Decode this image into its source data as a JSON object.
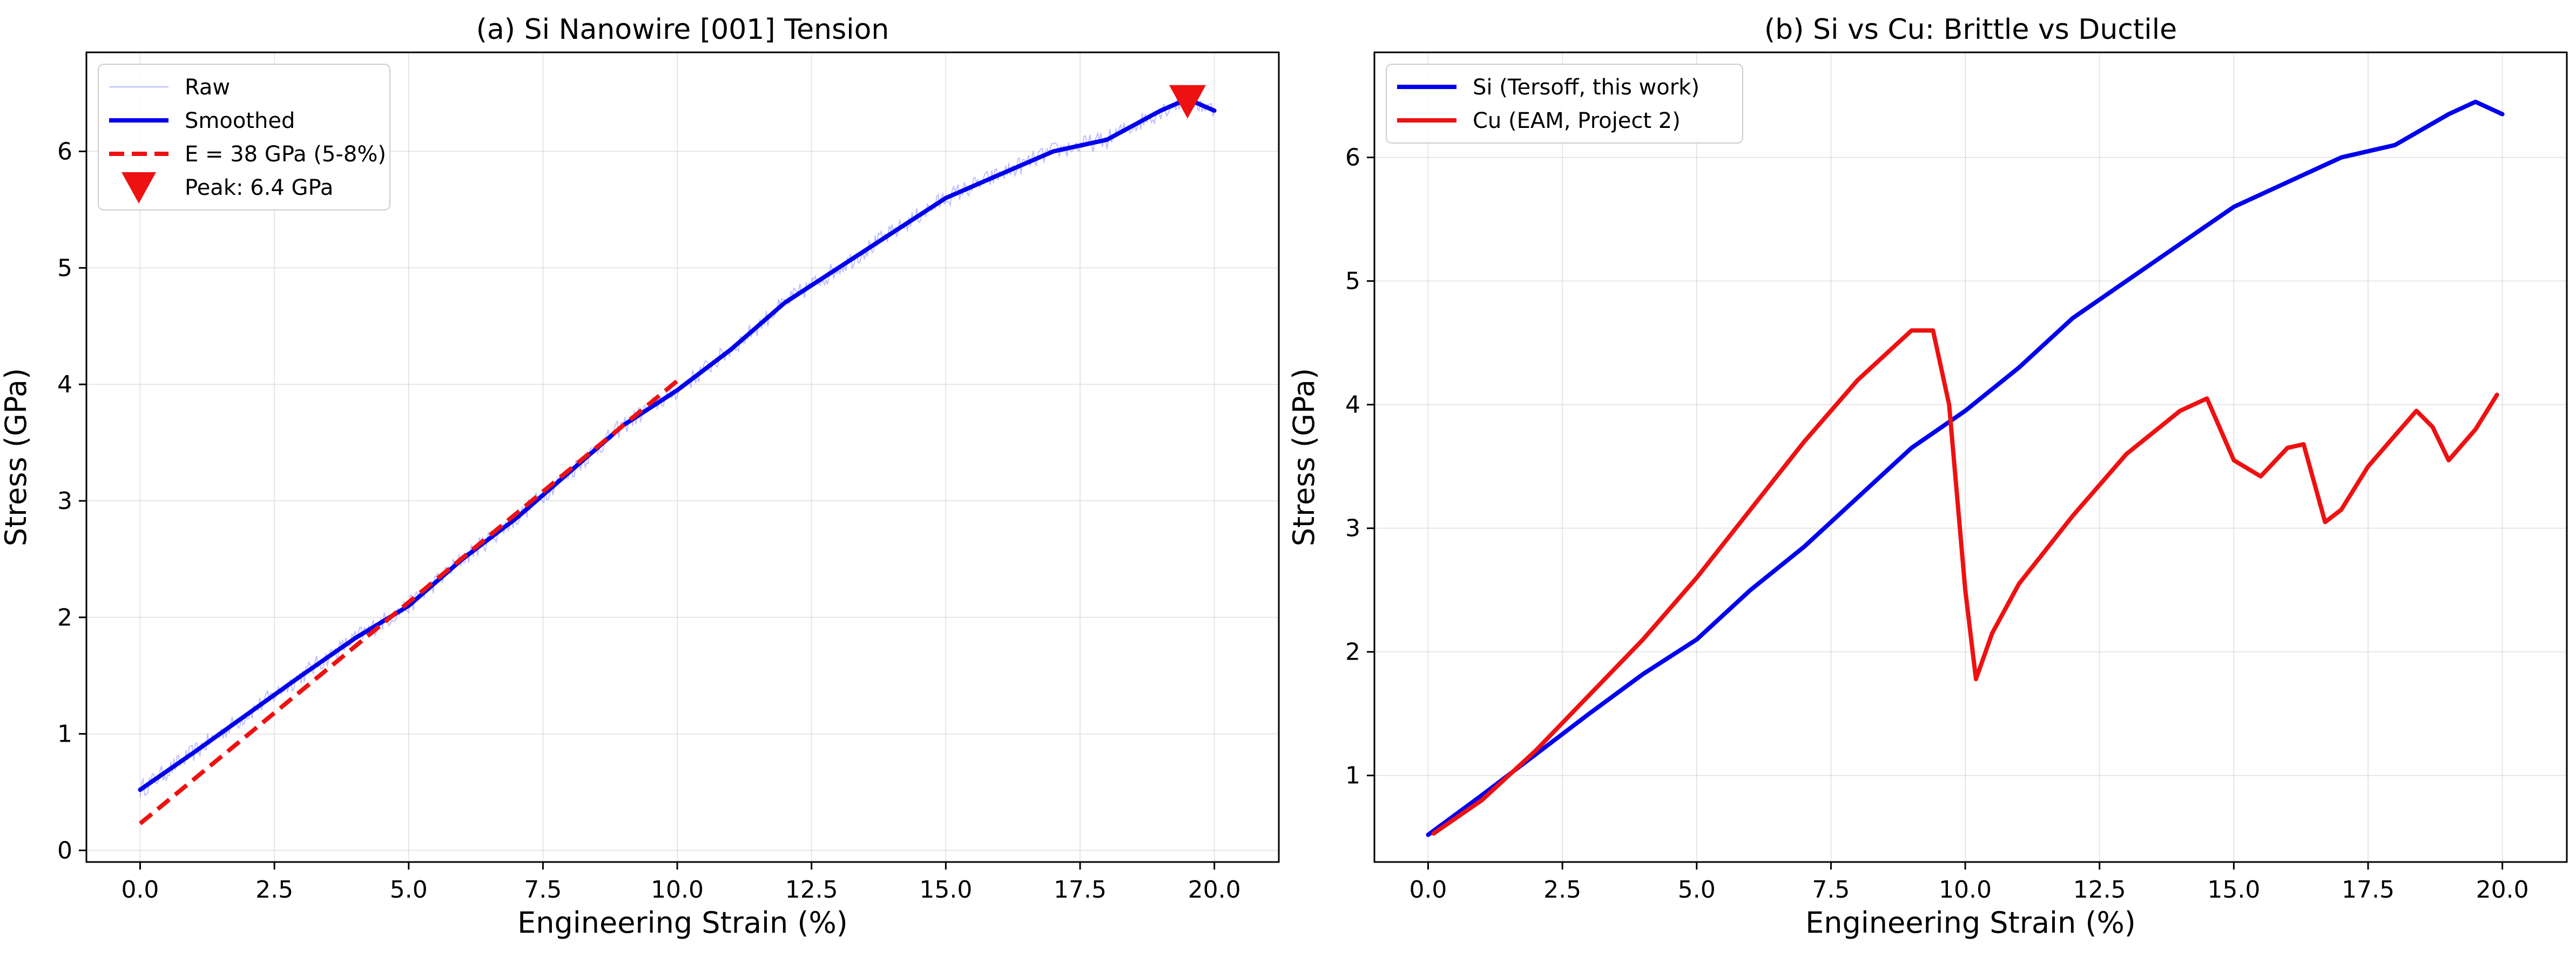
{
  "chart_data": [
    {
      "type": "line",
      "title": "(a) Si Nanowire [001] Tension",
      "xlabel": "Engineering Strain (%)",
      "ylabel": "Stress (GPa)",
      "xlim": [
        -1,
        21.2
      ],
      "ylim": [
        -0.1,
        6.85
      ],
      "xticks": [
        0.0,
        2.5,
        5.0,
        7.5,
        10.0,
        12.5,
        15.0,
        17.5,
        20.0
      ],
      "yticks": [
        0,
        1,
        2,
        3,
        4,
        5,
        6
      ],
      "grid": true,
      "legend_position": "top-left",
      "series": [
        {
          "name": "Raw",
          "kind": "noisy-line",
          "color": "#8888ff",
          "x": [
            0.0,
            1.0,
            2.0,
            3.0,
            4.0,
            5.0,
            6.0,
            7.0,
            8.0,
            9.0,
            10.0,
            11.0,
            12.0,
            13.0,
            14.0,
            15.0,
            16.0,
            17.0,
            17.5,
            18.0,
            19.0,
            19.5,
            20.0
          ],
          "y": [
            0.52,
            0.84,
            1.17,
            1.5,
            1.82,
            2.1,
            2.5,
            2.85,
            3.25,
            3.65,
            3.95,
            4.3,
            4.7,
            5.0,
            5.3,
            5.6,
            5.8,
            6.0,
            6.05,
            6.1,
            6.35,
            6.45,
            6.35
          ]
        },
        {
          "name": "Smoothed",
          "kind": "line",
          "color": "#0000ee",
          "x": [
            0.0,
            1.0,
            2.0,
            3.0,
            4.0,
            5.0,
            6.0,
            7.0,
            8.0,
            9.0,
            10.0,
            11.0,
            12.0,
            13.0,
            14.0,
            15.0,
            16.0,
            17.0,
            17.5,
            18.0,
            19.0,
            19.5,
            20.0
          ],
          "y": [
            0.52,
            0.84,
            1.17,
            1.5,
            1.82,
            2.1,
            2.5,
            2.85,
            3.25,
            3.65,
            3.95,
            4.3,
            4.7,
            5.0,
            5.3,
            5.6,
            5.8,
            6.0,
            6.05,
            6.1,
            6.35,
            6.45,
            6.35
          ]
        },
        {
          "name": "E = 38 GPa (5-8%)",
          "kind": "dashed-line",
          "color": "#ee1111",
          "x": [
            0.0,
            10.0
          ],
          "y": [
            0.23,
            4.03
          ]
        },
        {
          "name": "Peak: 6.4 GPa",
          "kind": "marker",
          "color": "#ee1111",
          "x": [
            19.5
          ],
          "y": [
            6.43
          ]
        }
      ]
    },
    {
      "type": "line",
      "title": "(b) Si vs Cu: Brittle vs Ductile",
      "xlabel": "Engineering Strain (%)",
      "ylabel": "Stress (GPa)",
      "xlim": [
        -1,
        21.2
      ],
      "ylim": [
        0.3,
        6.85
      ],
      "xticks": [
        0.0,
        2.5,
        5.0,
        7.5,
        10.0,
        12.5,
        15.0,
        17.5,
        20.0
      ],
      "yticks": [
        1,
        2,
        3,
        4,
        5,
        6
      ],
      "grid": true,
      "legend_position": "top-left",
      "series": [
        {
          "name": "Si (Tersoff, this work)",
          "kind": "line",
          "color": "#0000ee",
          "x": [
            0.0,
            1.0,
            2.0,
            3.0,
            4.0,
            5.0,
            6.0,
            7.0,
            8.0,
            9.0,
            10.0,
            11.0,
            12.0,
            13.0,
            14.0,
            15.0,
            16.0,
            17.0,
            17.5,
            18.0,
            19.0,
            19.5,
            20.0
          ],
          "y": [
            0.52,
            0.84,
            1.17,
            1.5,
            1.82,
            2.1,
            2.5,
            2.85,
            3.25,
            3.65,
            3.95,
            4.3,
            4.7,
            5.0,
            5.3,
            5.6,
            5.8,
            6.0,
            6.05,
            6.1,
            6.35,
            6.45,
            6.35
          ]
        },
        {
          "name": "Cu (EAM, Project 2)",
          "kind": "line",
          "color": "#ee1111",
          "x": [
            0.1,
            1.0,
            2.0,
            3.0,
            4.0,
            5.0,
            6.0,
            7.0,
            8.0,
            9.0,
            9.4,
            9.7,
            10.0,
            10.2,
            10.5,
            11.0,
            12.0,
            13.0,
            14.0,
            14.5,
            14.8,
            15.0,
            15.5,
            16.0,
            16.3,
            16.7,
            17.0,
            17.5,
            18.0,
            18.4,
            18.7,
            19.0,
            19.5,
            19.9
          ],
          "y": [
            0.53,
            0.8,
            1.2,
            1.65,
            2.1,
            2.6,
            3.15,
            3.7,
            4.2,
            4.6,
            4.6,
            4.0,
            2.5,
            1.78,
            2.15,
            2.55,
            3.1,
            3.6,
            3.95,
            4.05,
            3.75,
            3.55,
            3.42,
            3.65,
            3.68,
            3.05,
            3.15,
            3.5,
            3.75,
            3.95,
            3.82,
            3.55,
            3.8,
            4.08
          ]
        }
      ]
    }
  ]
}
